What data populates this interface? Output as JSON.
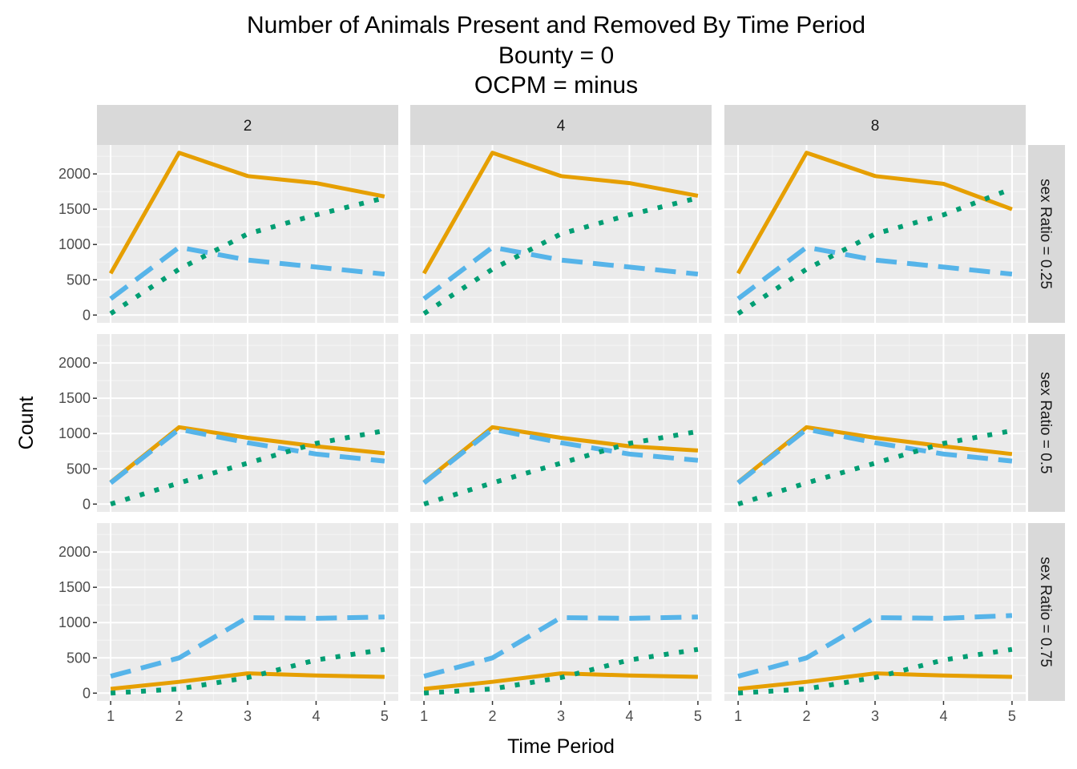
{
  "chart_data": {
    "type": "line",
    "title_lines": [
      "Number of Animals Present and Removed By Time Period",
      "Bounty = 0",
      "OCPM = minus"
    ],
    "xlabel": "Time Period",
    "ylabel": "Count",
    "x": [
      1,
      2,
      3,
      4,
      5
    ],
    "xlim": [
      0.8,
      5.2
    ],
    "ylim": [
      -110,
      2410
    ],
    "y_ticks": [
      0,
      500,
      1000,
      1500,
      2000
    ],
    "x_ticks": [
      1,
      2,
      3,
      4,
      5
    ],
    "facet_cols": [
      "2",
      "4",
      "8"
    ],
    "facet_rows": [
      "sex Ratio = 0.25",
      "sex Ratio = 0.5",
      "sex Ratio = 0.75"
    ],
    "grid": true,
    "legend": "none",
    "series_styles": [
      {
        "id": "solid",
        "color": "#E69F00",
        "dash": "none"
      },
      {
        "id": "dashed",
        "color": "#56B4E9",
        "dash": "long-dash"
      },
      {
        "id": "dotted",
        "color": "#009E73",
        "dash": "dotted"
      }
    ],
    "panels": [
      {
        "row": 0,
        "col": 0,
        "series": [
          {
            "style": "solid",
            "values": [
              590,
              2300,
              1970,
              1870,
              1680
            ]
          },
          {
            "style": "dashed",
            "values": [
              230,
              960,
              780,
              680,
              580
            ]
          },
          {
            "style": "dotted",
            "values": [
              20,
              650,
              1150,
              1420,
              1660
            ]
          }
        ]
      },
      {
        "row": 0,
        "col": 1,
        "series": [
          {
            "style": "solid",
            "values": [
              590,
              2300,
              1970,
              1870,
              1690
            ]
          },
          {
            "style": "dashed",
            "values": [
              230,
              960,
              780,
              680,
              580
            ]
          },
          {
            "style": "dotted",
            "values": [
              20,
              650,
              1150,
              1420,
              1660
            ]
          }
        ]
      },
      {
        "row": 0,
        "col": 2,
        "series": [
          {
            "style": "solid",
            "values": [
              590,
              2300,
              1970,
              1860,
              1500
            ]
          },
          {
            "style": "dashed",
            "values": [
              230,
              960,
              780,
              680,
              580
            ]
          },
          {
            "style": "dotted",
            "values": [
              20,
              650,
              1150,
              1420,
              1790
            ]
          }
        ]
      },
      {
        "row": 1,
        "col": 0,
        "series": [
          {
            "style": "solid",
            "values": [
              310,
              1090,
              940,
              820,
              720
            ]
          },
          {
            "style": "dashed",
            "values": [
              300,
              1060,
              870,
              710,
              610
            ]
          },
          {
            "style": "dotted",
            "values": [
              0,
              300,
              580,
              860,
              1040
            ]
          }
        ]
      },
      {
        "row": 1,
        "col": 1,
        "series": [
          {
            "style": "solid",
            "values": [
              310,
              1090,
              940,
              820,
              760
            ]
          },
          {
            "style": "dashed",
            "values": [
              300,
              1060,
              870,
              710,
              620
            ]
          },
          {
            "style": "dotted",
            "values": [
              0,
              300,
              580,
              860,
              1030
            ]
          }
        ]
      },
      {
        "row": 1,
        "col": 2,
        "series": [
          {
            "style": "solid",
            "values": [
              310,
              1090,
              940,
              820,
              710
            ]
          },
          {
            "style": "dashed",
            "values": [
              300,
              1060,
              870,
              710,
              610
            ]
          },
          {
            "style": "dotted",
            "values": [
              0,
              300,
              580,
              860,
              1040
            ]
          }
        ]
      },
      {
        "row": 2,
        "col": 0,
        "series": [
          {
            "style": "solid",
            "values": [
              60,
              160,
              280,
              250,
              230
            ]
          },
          {
            "style": "dashed",
            "values": [
              240,
              500,
              1070,
              1060,
              1080
            ]
          },
          {
            "style": "dotted",
            "values": [
              0,
              60,
              220,
              470,
              620
            ]
          }
        ]
      },
      {
        "row": 2,
        "col": 1,
        "series": [
          {
            "style": "solid",
            "values": [
              60,
              160,
              280,
              250,
              230
            ]
          },
          {
            "style": "dashed",
            "values": [
              240,
              500,
              1070,
              1060,
              1080
            ]
          },
          {
            "style": "dotted",
            "values": [
              0,
              60,
              220,
              470,
              620
            ]
          }
        ]
      },
      {
        "row": 2,
        "col": 2,
        "series": [
          {
            "style": "solid",
            "values": [
              60,
              160,
              280,
              250,
              230
            ]
          },
          {
            "style": "dashed",
            "values": [
              240,
              500,
              1070,
              1060,
              1100
            ]
          },
          {
            "style": "dotted",
            "values": [
              0,
              60,
              220,
              470,
              620
            ]
          }
        ]
      }
    ]
  }
}
